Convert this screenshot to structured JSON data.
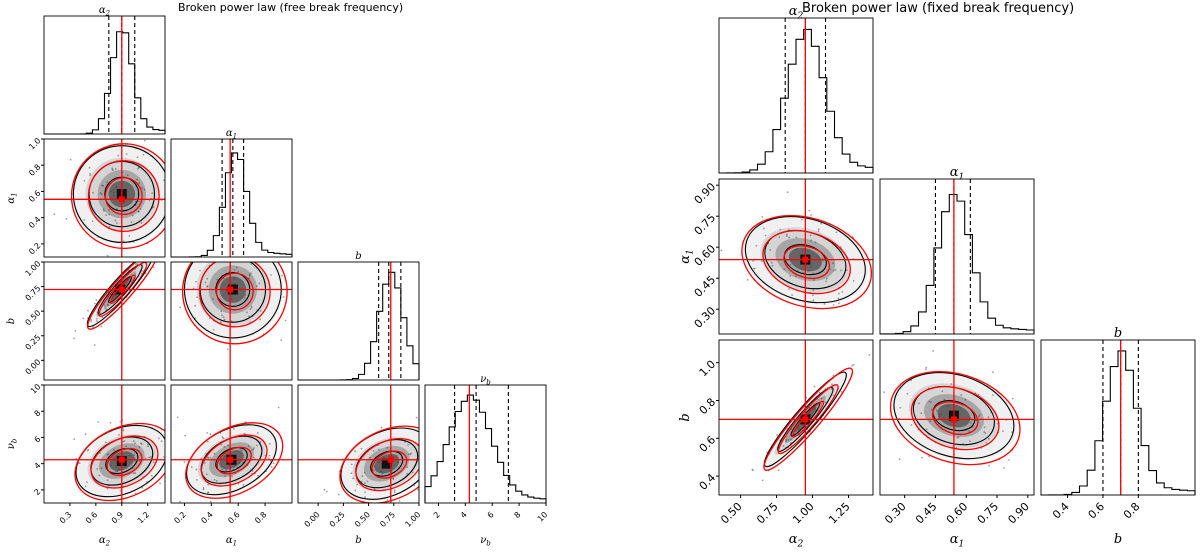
{
  "chart_data": [
    {
      "type": "corner",
      "title": "Broken power law (free break frequency)",
      "parameters": [
        {
          "name": "α2",
          "sub": "2",
          "base": "α",
          "truth": 0.9,
          "range": [
            0.0,
            1.4
          ],
          "ticks": [
            0.3,
            0.6,
            0.9,
            1.2
          ],
          "tick_labels": [
            "0.3",
            "0.6",
            "0.9",
            "1.2"
          ],
          "quantiles": [
            0.75,
            0.9,
            1.05
          ],
          "mode": 0.9,
          "hist_sigma": 0.12
        },
        {
          "name": "α1",
          "sub": "1",
          "base": "α",
          "truth": 0.54,
          "range": [
            0.1,
            1.0
          ],
          "ticks": [
            0.2,
            0.4,
            0.6,
            0.8
          ],
          "tick_labels": [
            "0.2",
            "0.4",
            "0.6",
            "0.8"
          ],
          "quantiles": [
            0.48,
            0.56,
            0.64
          ],
          "mode": 0.58,
          "hist_sigma": 0.08
        },
        {
          "name": "b",
          "sub": "",
          "base": "b",
          "truth": 0.72,
          "range": [
            -0.2,
            1.0
          ],
          "ticks": [
            0.0,
            0.25,
            0.5,
            0.75,
            1.0
          ],
          "tick_labels": [
            "0.00",
            "0.25",
            "0.50",
            "0.75",
            "1.00"
          ],
          "quantiles": [
            0.6,
            0.7,
            0.82
          ],
          "mode": 0.72,
          "hist_sigma": 0.12
        },
        {
          "name": "νb",
          "sub": "b",
          "base": "ν",
          "truth": 4.3,
          "range": [
            1.0,
            10.0
          ],
          "ticks": [
            2,
            4,
            6,
            8,
            10
          ],
          "tick_labels": [
            "2",
            "4",
            "6",
            "8",
            "10"
          ],
          "quantiles": [
            3.2,
            4.8,
            7.2
          ],
          "mode": 4.3,
          "hist_sigma": 1.6
        }
      ],
      "ytick_labels_row": {
        "α1": [
          "0.2",
          "0.4",
          "0.6",
          "0.8",
          "1.0"
        ],
        "b": [
          "0.00",
          "0.25",
          "0.50",
          "0.75",
          "1.00"
        ],
        "νb": [
          "2",
          "4",
          "6",
          "8",
          "10"
        ]
      },
      "y_ranges": {
        "α1": [
          0.1,
          1.0
        ],
        "b": [
          -0.2,
          1.0
        ],
        "νb": [
          1.0,
          10.0
        ]
      },
      "y_ticks": {
        "α1": [
          0.2,
          0.4,
          0.6,
          0.8,
          1.0
        ],
        "b": [
          0.0,
          0.25,
          0.5,
          0.75,
          1.0
        ],
        "νb": [
          2,
          4,
          6,
          8,
          10
        ]
      },
      "density_centers": {
        "1-0": {
          "x": 0.9,
          "y": 0.58,
          "corr": 0.0
        },
        "2-0": {
          "x": 0.88,
          "y": 0.72,
          "corr": 0.95
        },
        "2-1": {
          "x": 0.56,
          "y": 0.72,
          "corr": 0.0
        },
        "3-0": {
          "x": 0.9,
          "y": 4.2,
          "corr": 0.4
        },
        "3-1": {
          "x": 0.55,
          "y": 4.3,
          "corr": 0.45
        },
        "3-2": {
          "x": 0.68,
          "y": 4.0,
          "corr": 0.4
        }
      }
    },
    {
      "type": "corner",
      "title": "Broken power law (fixed break frequency)",
      "parameters": [
        {
          "name": "α2",
          "sub": "2",
          "base": "α",
          "truth": 0.95,
          "range": [
            0.35,
            1.42
          ],
          "ticks": [
            0.5,
            0.75,
            1.0,
            1.25
          ],
          "tick_labels": [
            "0.50",
            "0.75",
            "1.00",
            "1.25"
          ],
          "quantiles": [
            0.81,
            0.95,
            1.09
          ],
          "mode": 0.95,
          "hist_sigma": 0.13
        },
        {
          "name": "α1",
          "sub": "1",
          "base": "α",
          "truth": 0.54,
          "range": [
            0.18,
            0.93
          ],
          "ticks": [
            0.3,
            0.45,
            0.6,
            0.75,
            0.9
          ],
          "tick_labels": [
            "0.30",
            "0.45",
            "0.60",
            "0.75",
            "0.90"
          ],
          "quantiles": [
            0.45,
            0.54,
            0.62
          ],
          "mode": 0.54,
          "hist_sigma": 0.08
        },
        {
          "name": "b",
          "sub": "",
          "base": "b",
          "truth": 0.7,
          "range": [
            0.25,
            1.12
          ],
          "ticks": [
            0.4,
            0.6,
            0.8
          ],
          "tick_labels": [
            "0.4",
            "0.6",
            "0.8"
          ],
          "quantiles": [
            0.6,
            0.7,
            0.8
          ],
          "mode": 0.7,
          "hist_sigma": 0.09
        }
      ],
      "ytick_labels_row": {
        "α1": [
          "0.30",
          "0.45",
          "0.60",
          "0.75",
          "0.90"
        ],
        "b": [
          "0.4",
          "0.6",
          "0.8",
          "1.0"
        ]
      },
      "y_ranges": {
        "α1": [
          0.18,
          0.93
        ],
        "b": [
          0.3,
          1.12
        ]
      },
      "y_ticks": {
        "α1": [
          0.3,
          0.45,
          0.6,
          0.75,
          0.9
        ],
        "b": [
          0.4,
          0.6,
          0.8,
          1.0
        ]
      },
      "density_centers": {
        "1-0": {
          "x": 0.95,
          "y": 0.54,
          "corr": -0.4
        },
        "2-0": {
          "x": 0.95,
          "y": 0.7,
          "corr": 0.97
        },
        "2-1": {
          "x": 0.54,
          "y": 0.72,
          "corr": -0.4
        }
      }
    }
  ],
  "colors": {
    "truth": "#ff0000",
    "contour": "#000000",
    "density": "#3a3a3a"
  }
}
